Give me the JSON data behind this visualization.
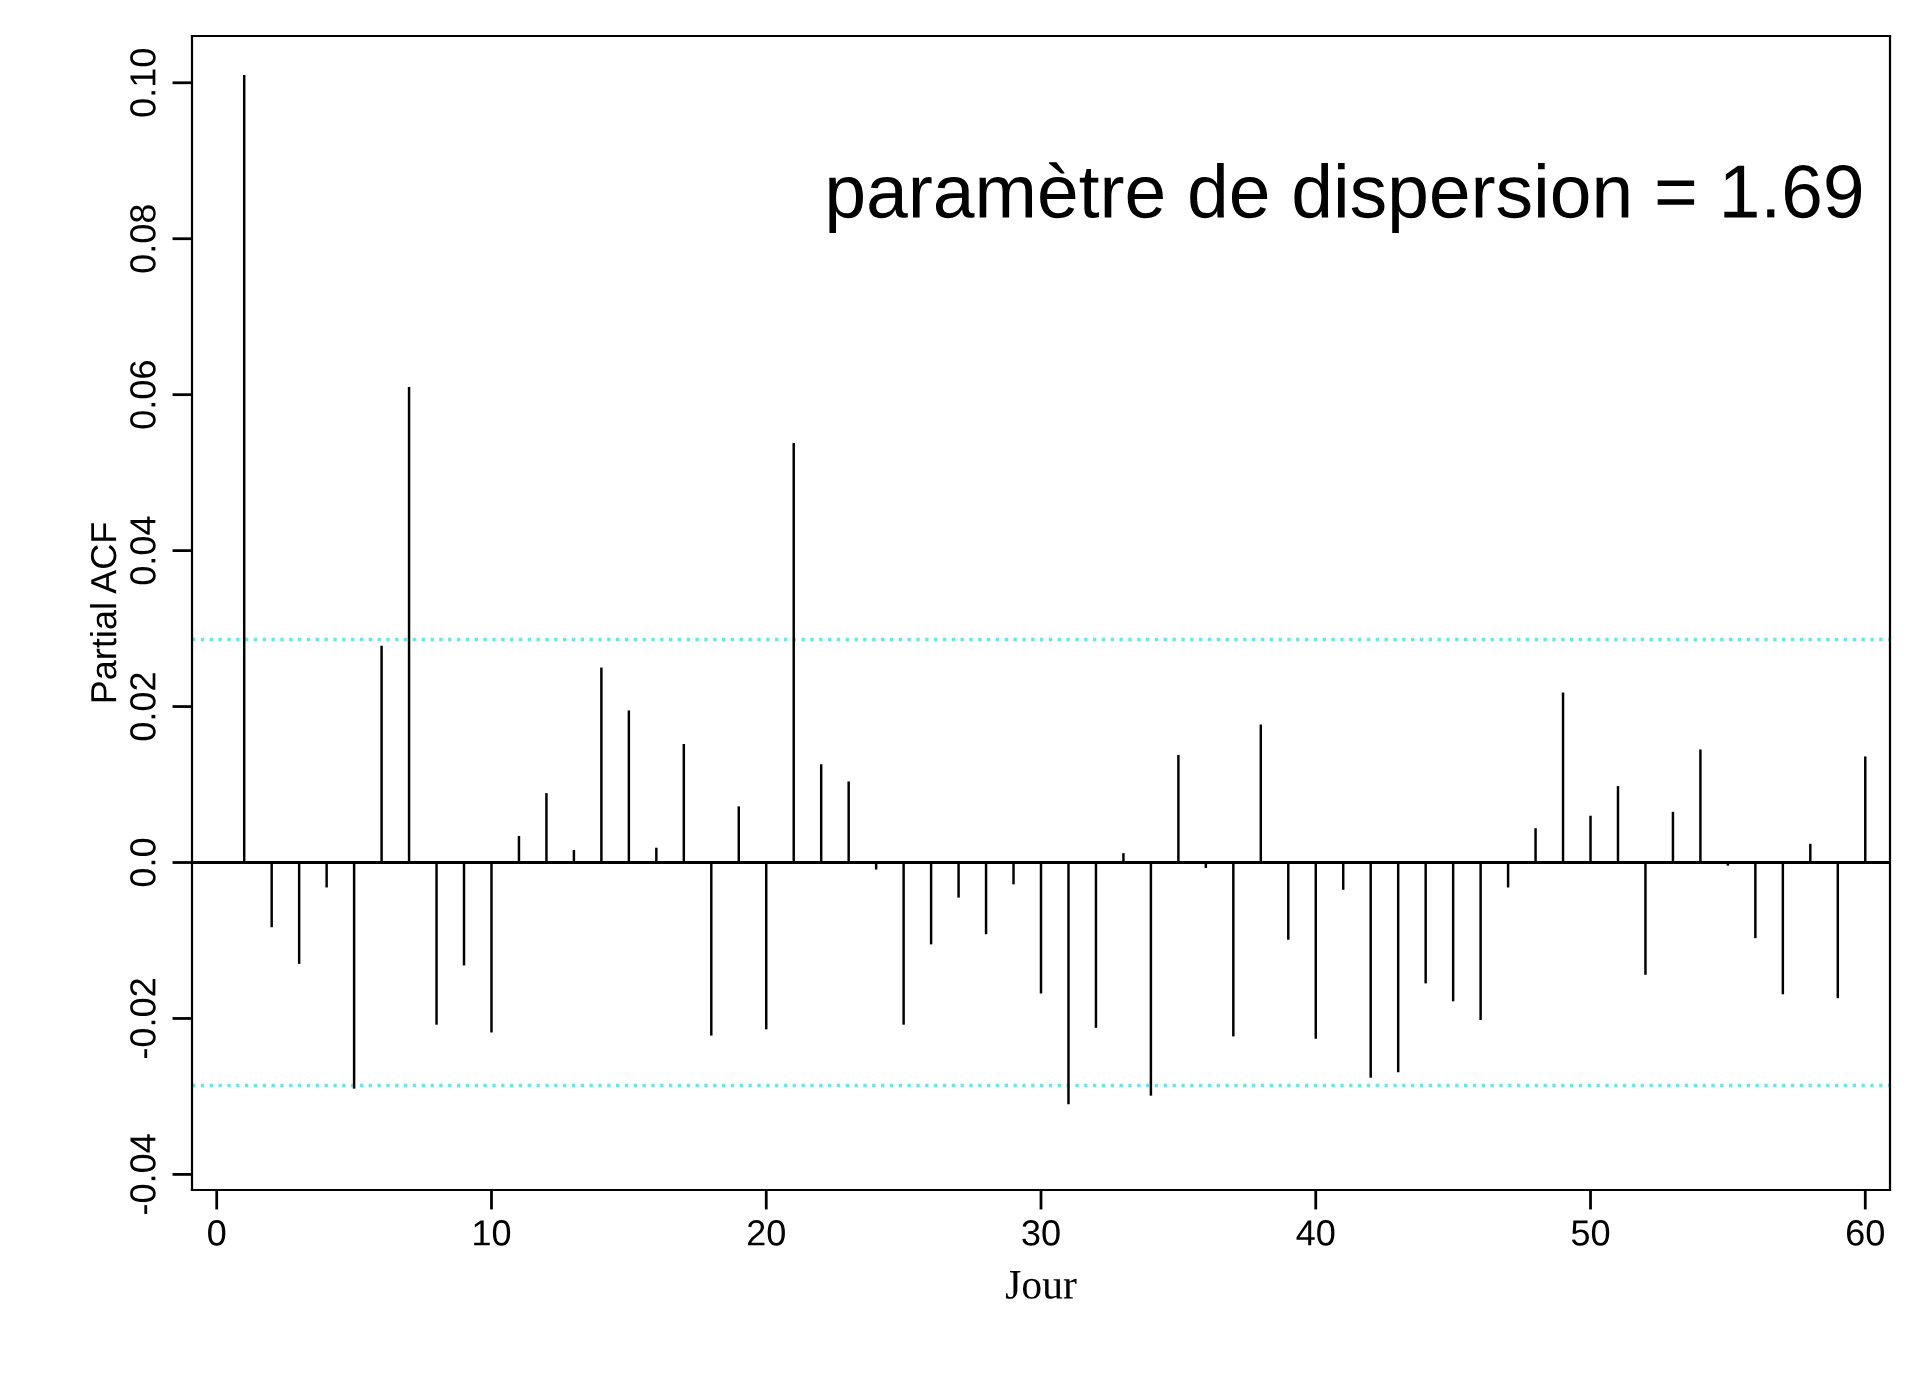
{
  "chart_data": {
    "type": "bar",
    "xlabel": "Jour",
    "ylabel": "Partial ACF",
    "annotations": [
      "paramètre de dispersion = 1.69"
    ],
    "x": [
      1,
      2,
      3,
      4,
      5,
      6,
      7,
      8,
      9,
      10,
      11,
      12,
      13,
      14,
      15,
      16,
      17,
      18,
      19,
      20,
      21,
      22,
      23,
      24,
      25,
      26,
      27,
      28,
      29,
      30,
      31,
      32,
      33,
      34,
      35,
      36,
      37,
      38,
      39,
      40,
      41,
      42,
      43,
      44,
      45,
      46,
      47,
      48,
      49,
      50,
      51,
      52,
      53,
      54,
      55,
      56,
      57,
      58,
      59,
      60
    ],
    "values": [
      0.101,
      -0.0083,
      -0.013,
      -0.0032,
      -0.029,
      0.0278,
      0.061,
      -0.0208,
      -0.0132,
      -0.0218,
      0.0034,
      0.0089,
      0.0016,
      0.025,
      0.0195,
      0.0019,
      0.0152,
      -0.0222,
      0.0072,
      -0.0214,
      0.0538,
      0.0126,
      0.0104,
      -0.0009,
      -0.0208,
      -0.0105,
      -0.0045,
      -0.0092,
      -0.0028,
      -0.0168,
      -0.031,
      -0.0212,
      0.0012,
      -0.0299,
      0.0138,
      -0.0007,
      -0.0223,
      0.0177,
      -0.0099,
      -0.0226,
      -0.0035,
      -0.0276,
      -0.0269,
      -0.0155,
      -0.0178,
      -0.0202,
      -0.0032,
      0.0044,
      0.0218,
      0.006,
      0.0098,
      -0.0144,
      0.0065,
      0.0145,
      -0.0004,
      -0.0097,
      -0.0169,
      0.0024,
      -0.0174,
      0.0136
    ],
    "color": "#000000",
    "xlim": [
      -0.9,
      60.9
    ],
    "xticks": [
      0,
      10,
      20,
      30,
      40,
      50,
      60
    ],
    "ylim": [
      -0.042,
      0.106
    ],
    "yticks": [
      {
        "value": -0.04,
        "label": "-0.04"
      },
      {
        "value": -0.02,
        "label": "-0.02"
      },
      {
        "value": 0,
        "label": "0.0"
      },
      {
        "value": 0.02,
        "label": "0.02"
      },
      {
        "value": 0.04,
        "label": "0.04"
      },
      {
        "value": 0.06,
        "label": "0.06"
      },
      {
        "value": 0.08,
        "label": "0.08"
      },
      {
        "value": 0.1,
        "label": "0.10"
      }
    ],
    "ref_lines": [
      {
        "axis": "y",
        "value": 0,
        "color": "#000000",
        "line_style": "solid"
      },
      {
        "axis": "y",
        "value": 0.0286,
        "color": "#66e6e6",
        "line_style": "dotted"
      },
      {
        "axis": "y",
        "value": -0.0286,
        "color": "#66e6e6",
        "line_style": "dotted"
      }
    ],
    "grid": false,
    "legend": false
  }
}
